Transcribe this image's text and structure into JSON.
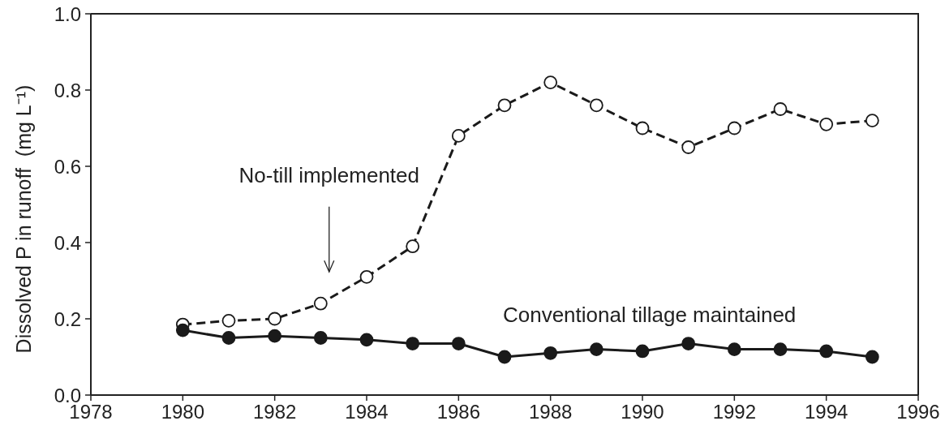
{
  "chart_data": {
    "type": "line",
    "ylabel": "Dissolved P in runoff  (mg L⁻¹)",
    "xlim": [
      1978,
      1996
    ],
    "xticks": [
      1978,
      1980,
      1982,
      1984,
      1986,
      1988,
      1990,
      1992,
      1994,
      1996
    ],
    "ylim": [
      0,
      1
    ],
    "yticks": [
      {
        "value": 0,
        "label": "0.0"
      },
      0.2,
      0.4,
      0.6,
      0.8,
      {
        "value": 1,
        "label": "1.0"
      }
    ],
    "marker": "circle",
    "annotations": [
      "No-till implemented"
    ],
    "x": [
      1980,
      1981,
      1982,
      1983,
      1984,
      1985,
      1986,
      1987,
      1988,
      1989,
      1990,
      1991,
      1992,
      1993,
      1994,
      1995
    ],
    "series": [
      {
        "color": "#1a1a1a",
        "colors": [
          "#ffffff",
          "#ffffff",
          "#ffffff",
          "#ffffff",
          "#ffffff",
          "#ffffff",
          "#ffffff",
          "#ffffff",
          "#ffffff",
          "#ffffff",
          "#ffffff",
          "#ffffff",
          "#ffffff",
          "#ffffff",
          "#ffffff",
          "#ffffff"
        ],
        "line_style": "dashed",
        "values": [
          0.185,
          0.195,
          0.2,
          0.24,
          0.31,
          0.39,
          0.68,
          0.76,
          0.82,
          0.76,
          0.7,
          0.65,
          0.7,
          0.75,
          0.71,
          0.72
        ]
      },
      {
        "name": "Conventional tillage maintained",
        "color": "#1a1a1a",
        "line_style": "solid",
        "values": [
          0.17,
          0.15,
          0.155,
          0.15,
          0.145,
          0.135,
          0.135,
          0.1,
          0.11,
          0.12,
          0.115,
          0.135,
          0.12,
          0.12,
          0.115,
          0.1
        ]
      }
    ]
  }
}
